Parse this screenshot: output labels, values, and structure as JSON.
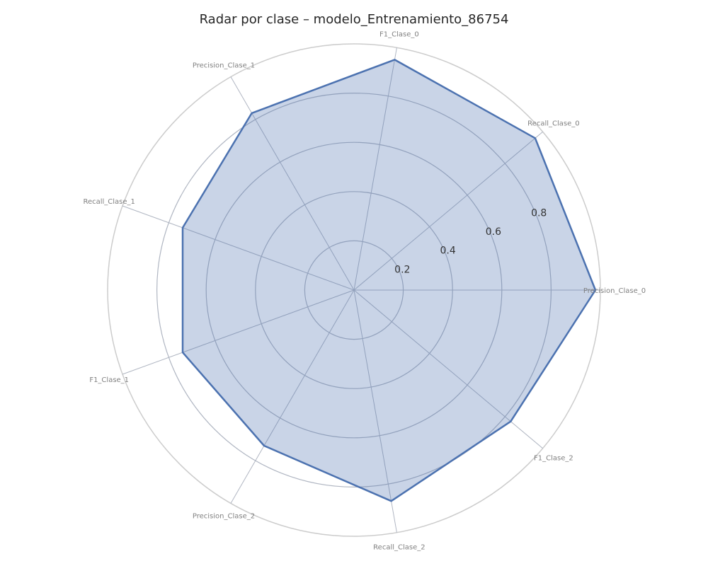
{
  "chart_data": {
    "type": "radar",
    "title": "Radar por clase – modelo_Entrenamiento_86754",
    "categories": [
      "Precision_Clase_0",
      "Recall_Clase_0",
      "F1_Clase_0",
      "Precision_Clase_1",
      "Recall_Clase_1",
      "F1_Clase_1",
      "Precision_Clase_2",
      "Recall_Clase_2",
      "F1_Clase_2"
    ],
    "values": [
      0.98,
      0.96,
      0.95,
      0.83,
      0.74,
      0.74,
      0.73,
      0.87,
      0.83
    ],
    "r_ticks": [
      0.2,
      0.4,
      0.6,
      0.8
    ],
    "r_tick_labels": [
      "0.2",
      "0.4",
      "0.6",
      "0.8"
    ],
    "rlim": [
      0,
      1
    ],
    "line_color": "#4c72b0",
    "fill_color": "#4c72b0",
    "grid": true
  }
}
